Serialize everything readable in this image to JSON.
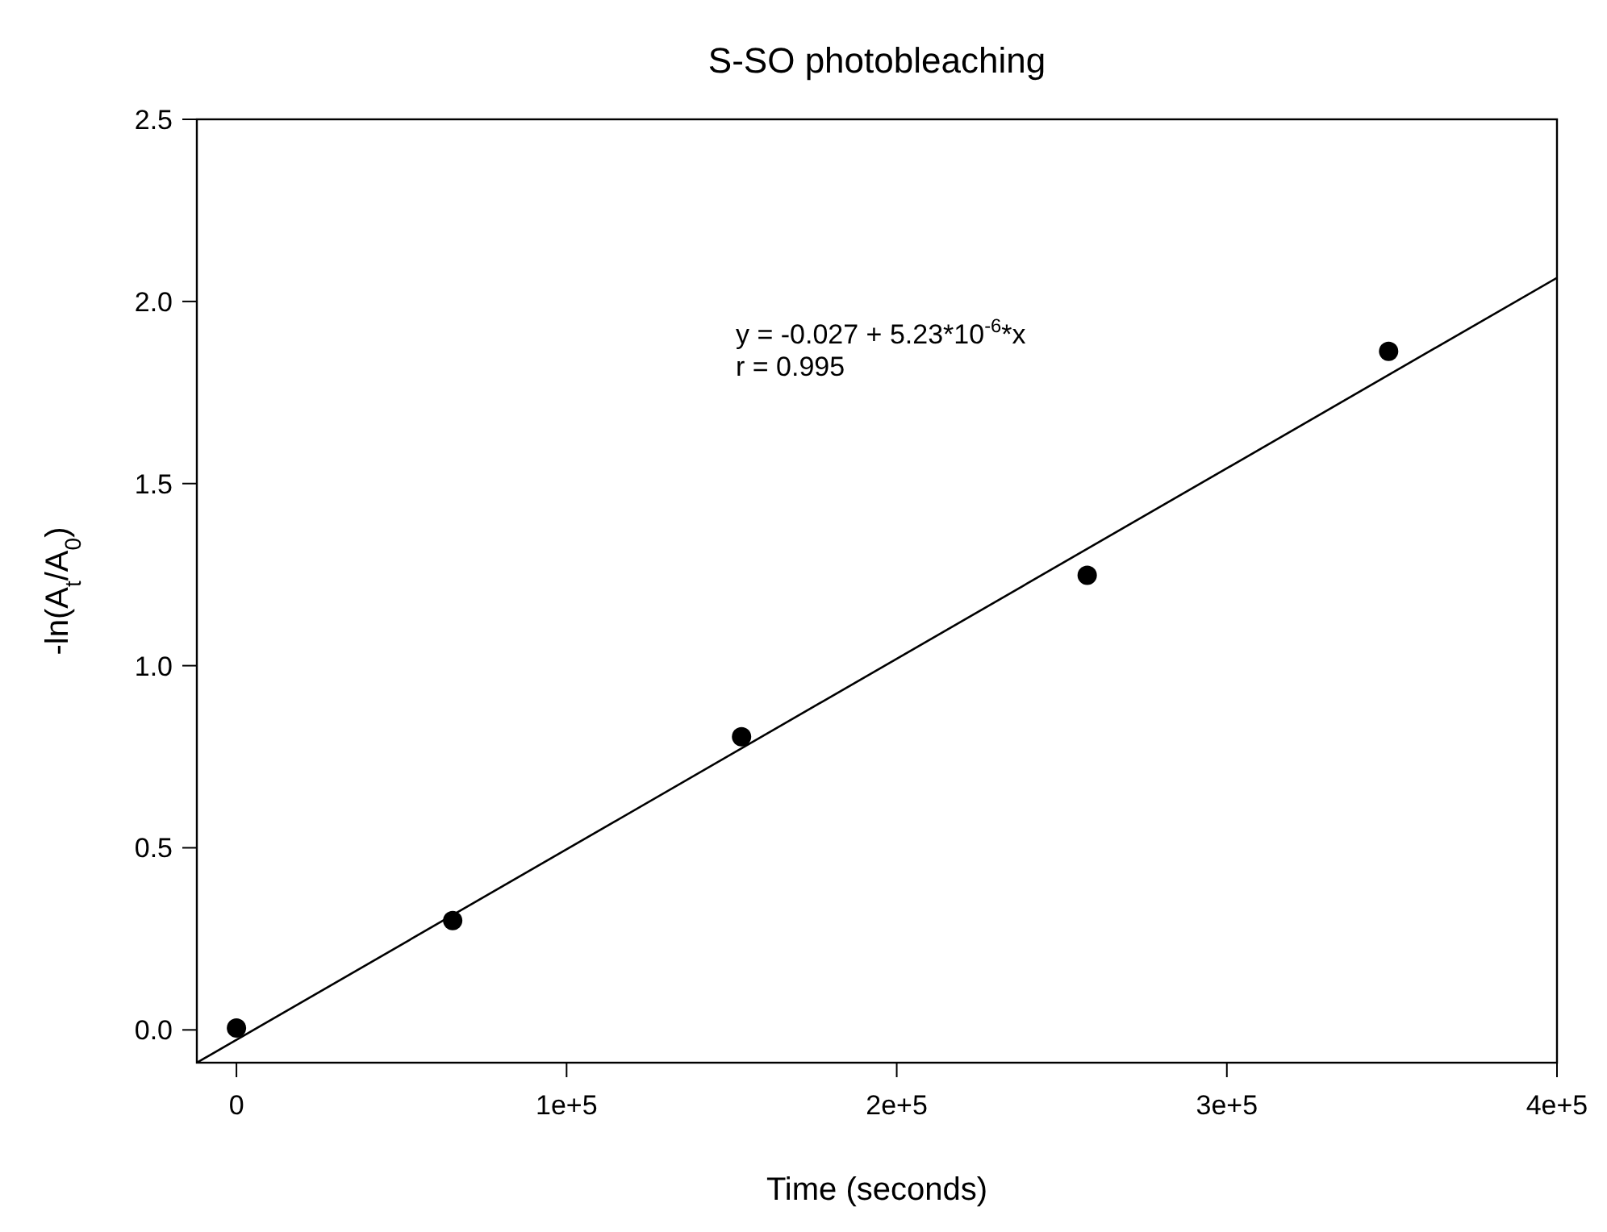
{
  "chart_data": {
    "type": "scatter",
    "title": "S-SO photobleaching",
    "xlabel": "Time (seconds)",
    "ylabel": "-ln(A$_{t}$/A$_{0}$)",
    "series": [
      {
        "color": "#000000",
        "x": [
          0,
          65500,
          153000,
          257700,
          349000
        ],
        "values": [
          0.005,
          0.3,
          0.805,
          1.248,
          1.863
        ],
        "marker": "circle"
      },
      {
        "type": "line",
        "color": "#000000",
        "x": [
          -12000,
          400000
        ],
        "values": [
          -0.09,
          2.065
        ],
        "marker": "none",
        "line_style": "solid"
      }
    ],
    "xlim": [
      -12000,
      400000
    ],
    "xticks": [
      0,
      {
        "value": 100000,
        "label": "1e+5"
      },
      {
        "value": 200000,
        "label": "2e+5"
      },
      {
        "value": 300000,
        "label": "3e+5"
      },
      {
        "value": 400000,
        "label": "4e+5"
      }
    ],
    "ylim": [
      -0.09,
      2.5
    ],
    "yticks": [
      {
        "value": 0,
        "label": "0.0"
      },
      {
        "value": 0.5,
        "label": "0.5"
      },
      {
        "value": 1,
        "label": "1.0"
      },
      {
        "value": 1.5,
        "label": "1.5"
      },
      {
        "value": 2,
        "label": "2.0"
      },
      {
        "value": 2.5,
        "label": "2.5"
      }
    ],
    "annotations": [
      "y = -0.027 + 5.23*10$^{-6}$*x",
      "r = 0.995"
    ],
    "grid": false
  }
}
